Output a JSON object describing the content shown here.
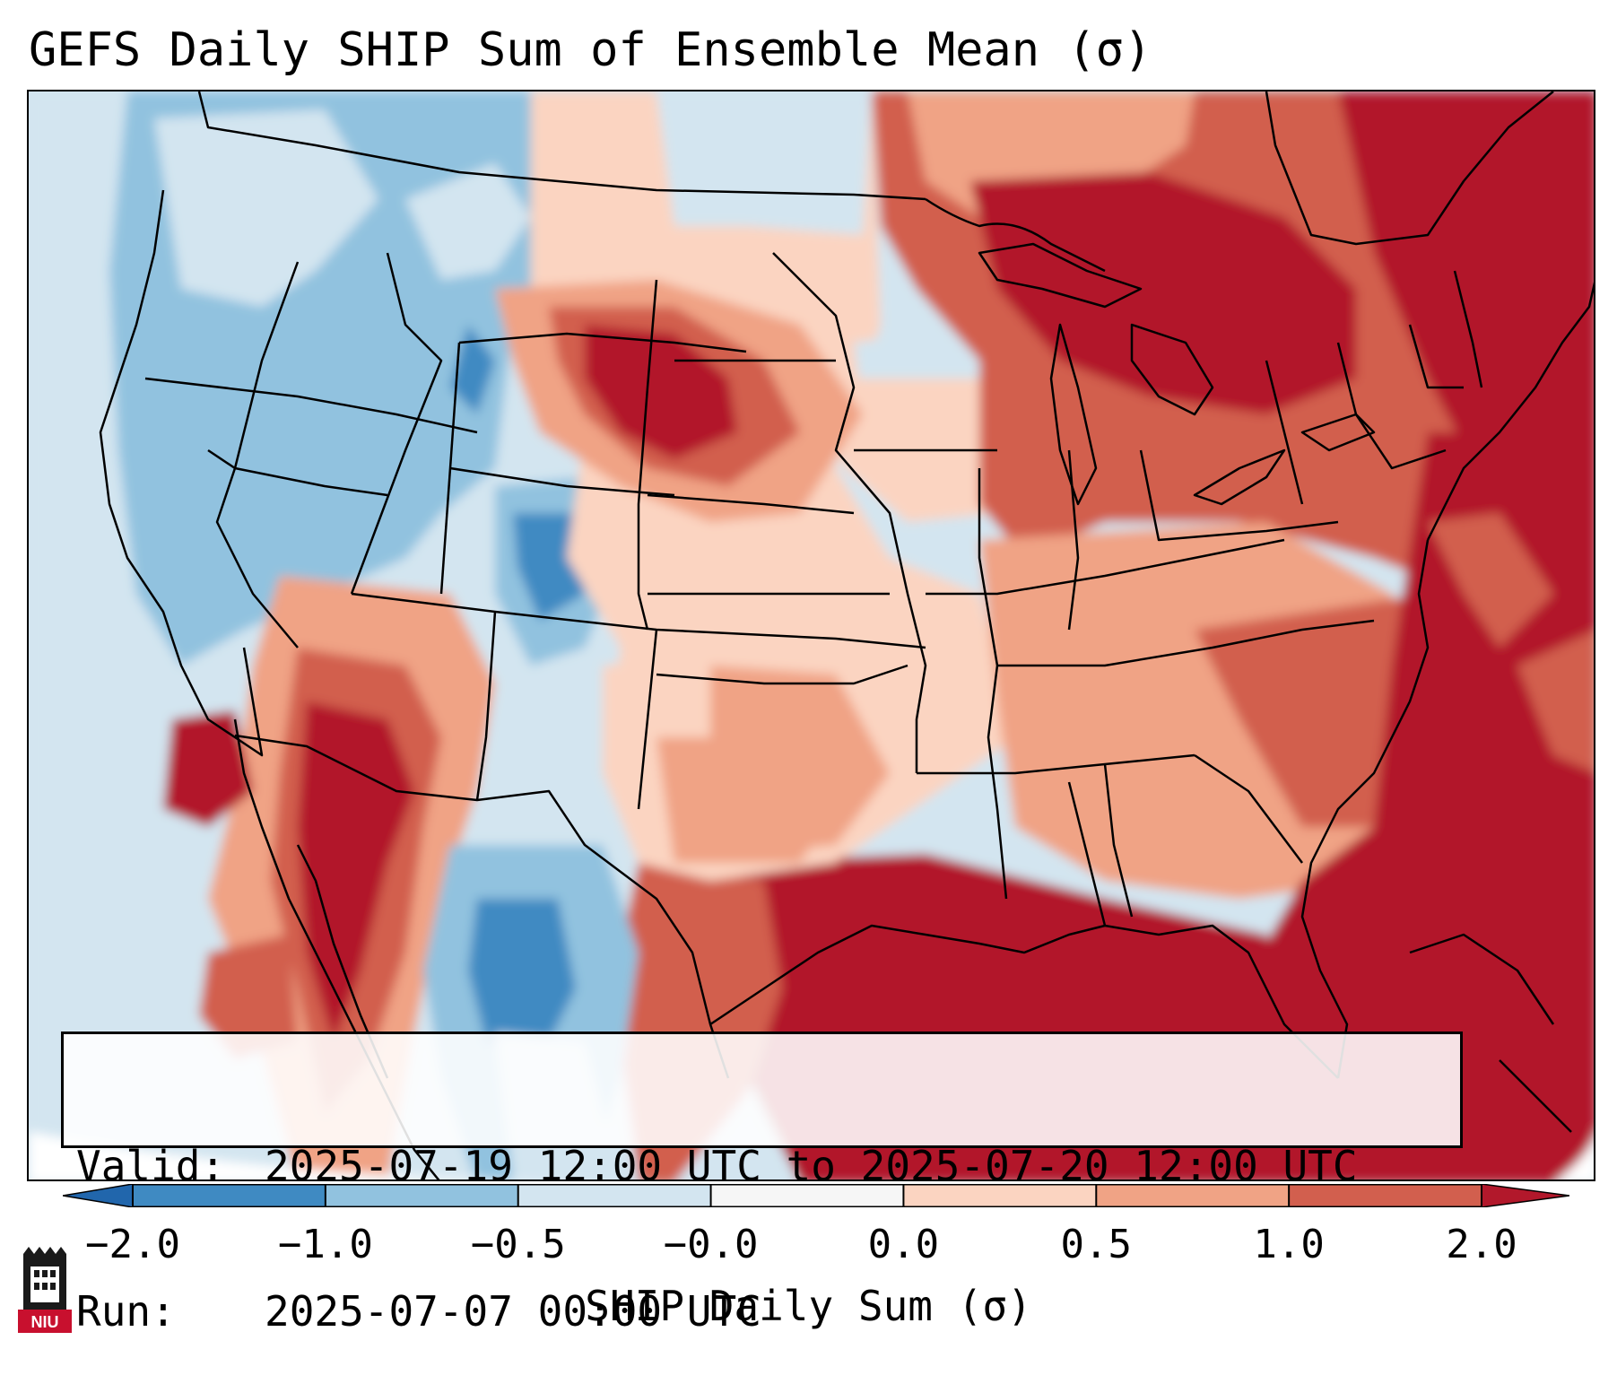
{
  "title": "GEFS Daily SHIP Sum of Ensemble Mean (σ)",
  "valid_label": "Valid:",
  "valid_value": "2025-07-19 12:00 UTC to 2025-07-20 12:00 UTC",
  "run_label": "Run:",
  "run_value": "2025-07-07 00:00 UTC",
  "colorbar": {
    "label": "SHIP Daily Sum (σ)",
    "ticks": [
      "−2.0",
      "−1.0",
      "−0.5",
      "−0.0",
      "0.0",
      "0.5",
      "1.0",
      "2.0"
    ],
    "colors": [
      "#3f8ac2",
      "#91c2df",
      "#d3e5f0",
      "#f6f6f6",
      "#fbd4c1",
      "#f0a385",
      "#d25f4e",
      "#b2182b"
    ],
    "under_color": "#2166ac",
    "over_color": "#b2182b"
  },
  "map": {
    "projection": "Lambert conformal, CONUS",
    "regions": {
      "pacific_ocean": "-0.5",
      "pacific_northwest": "-1.0 to -0.5",
      "northern_rockies": "-1.0 to -0.5",
      "northern_high_plains": "1.0 to 2.0",
      "southwest_mexico": "0.5 to 2.0",
      "southern_rockies_west_texas": "-2.0 to -0.5",
      "central_plains": "0.0 to 0.5",
      "great_lakes_northeast": "1.0 to 2.0",
      "southeast": "0.5 to 1.0",
      "gulf_of_mexico": "above 2.0",
      "western_atlantic": "1.0 to 2.0"
    }
  },
  "logo": {
    "text": "NIU",
    "icon": "niu-logo-icon"
  }
}
